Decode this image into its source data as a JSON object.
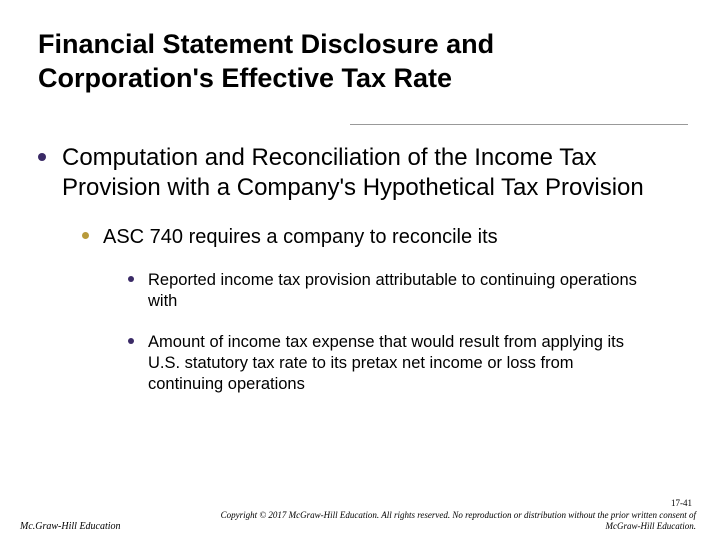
{
  "title_line1": "Financial Statement Disclosure and",
  "title_line2": "Corporation's Effective Tax Rate",
  "bullet_colors": {
    "lvl1": "#3a2a66",
    "lvl2": "#b89a3a",
    "lvl3": "#3a2a66"
  },
  "title_fontsize": 27,
  "body_font": "Arial",
  "lvl1_text": "Computation and Reconciliation of the Income Tax Provision with a Company's Hypothetical Tax Provision",
  "lvl2_text": "ASC 740 requires a company to reconcile its",
  "lvl3a_text": "Reported income tax provision attributable to continuing operations with",
  "lvl3b_text": "Amount of income tax expense that would result from applying its U.S. statutory tax rate to its pretax net income or loss from continuing operations",
  "page_number": "17-41",
  "copyright": "Copyright © 2017 McGraw-Hill Education. All rights reserved. No reproduction or distribution without the prior written consent of McGraw-Hill Education.",
  "publisher": "Mc.Graw-Hill Education"
}
